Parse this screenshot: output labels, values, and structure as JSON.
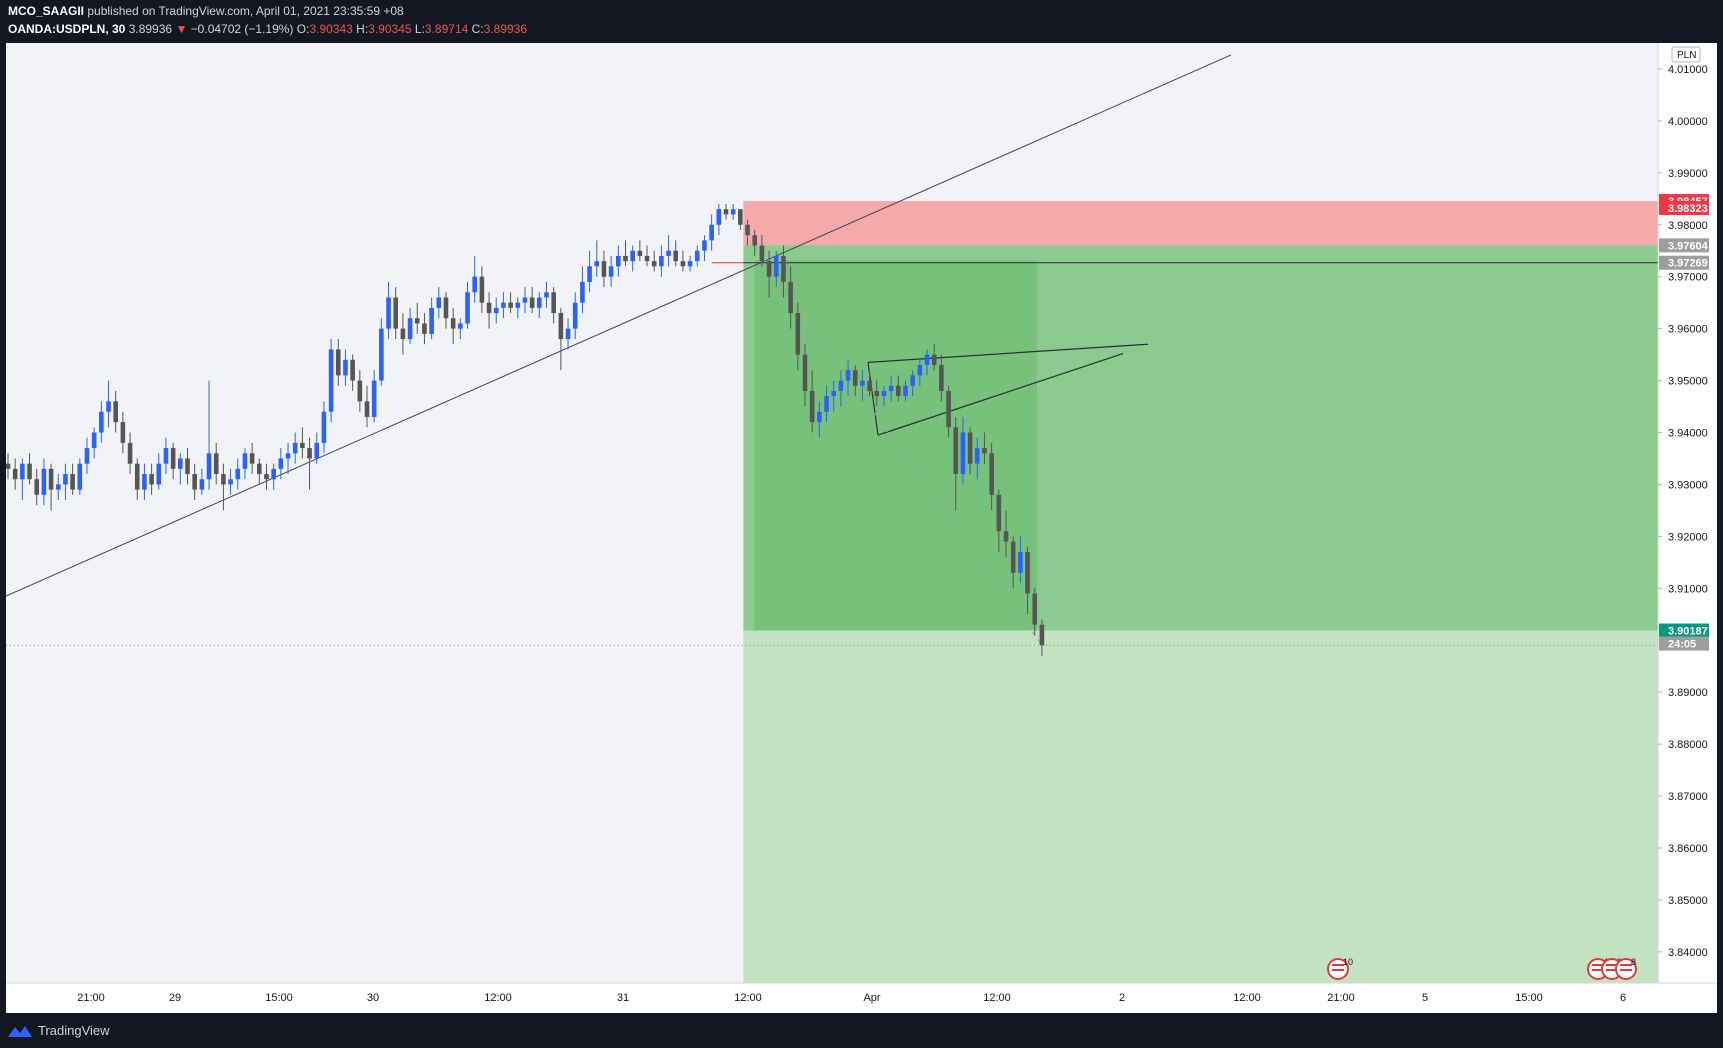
{
  "header": {
    "author": "MCO_SAAGII",
    "published": "published on TradingView.com, April 01, 2021 23:35:59 +08",
    "symbol": "OANDA:USDPLN, 30",
    "last": "3.89936",
    "change": "−0.04702 (−1.19%)",
    "o_label": "O:",
    "o_value": "3.90343",
    "h_label": "H:",
    "h_value": "3.90345",
    "l_label": "L:",
    "l_value": "3.89714",
    "c_label": "C:",
    "c_value": "3.89936"
  },
  "footer": {
    "brand": "TradingView"
  },
  "colors": {
    "background": "#f1f3f6",
    "up": "#2962ff",
    "down": "#555555",
    "stop_zone": "#f5a9a9",
    "target_zone": "#81c784",
    "target_light": "#c3e2c2"
  },
  "chart_data": {
    "type": "candlestick",
    "symbol": "OANDA:USDPLN",
    "interval": "30",
    "currency_label": "PLN",
    "ylim": [
      3.834,
      4.015
    ],
    "y_ticks": [
      4.01,
      4.0,
      3.99,
      3.98,
      3.97,
      3.96,
      3.95,
      3.94,
      3.93,
      3.92,
      3.91,
      3.9,
      3.89,
      3.88,
      3.87,
      3.86,
      3.85,
      3.84
    ],
    "y_tick_labels": [
      "4.01000",
      "4.00000",
      "3.99000",
      "3.98000",
      "3.97000",
      "3.96000",
      "3.95000",
      "3.94000",
      "3.93000",
      "3.92000",
      "3.91000",
      "3.90000",
      "3.89000",
      "3.88000",
      "3.87000",
      "3.86000",
      "3.85000",
      "3.84000"
    ],
    "x_ticks": [
      "21:00",
      "29",
      "15:00",
      "30",
      "12:00",
      "31",
      "12:00",
      "Apr",
      "12:00",
      "2",
      "12:00",
      "21:00",
      "5",
      "15:00",
      "6"
    ],
    "price_labels": [
      {
        "value": 3.98457,
        "label": "3.98457",
        "color": "#f23645"
      },
      {
        "value": 3.98323,
        "label": "3.98323",
        "color": "#f23645"
      },
      {
        "value": 3.97604,
        "label": "3.97604",
        "color": "#9e9e9e"
      },
      {
        "value": 3.97269,
        "label": "3.97269",
        "color": "#9e9e9e"
      },
      {
        "value": 3.90187,
        "label": "3.90187",
        "color": "#089981"
      },
      {
        "value": 3.89936,
        "label": "24:05",
        "color": "#9e9e9e"
      }
    ],
    "position": {
      "entry": 3.97604,
      "stop": 3.98457,
      "target": 3.90187,
      "lower_bound": 3.834
    },
    "calendar_events": [
      "10",
      "4",
      "2",
      "8"
    ],
    "candles": [
      [
        3.934,
        3.936,
        3.931,
        3.933
      ],
      [
        3.933,
        3.935,
        3.929,
        3.931
      ],
      [
        3.931,
        3.935,
        3.927,
        3.934
      ],
      [
        3.934,
        3.936,
        3.93,
        3.931
      ],
      [
        3.931,
        3.933,
        3.926,
        3.928
      ],
      [
        3.928,
        3.935,
        3.926,
        3.933
      ],
      [
        3.933,
        3.934,
        3.925,
        3.929
      ],
      [
        3.929,
        3.932,
        3.927,
        3.93
      ],
      [
        3.93,
        3.934,
        3.927,
        3.932
      ],
      [
        3.932,
        3.934,
        3.928,
        3.929
      ],
      [
        3.929,
        3.935,
        3.928,
        3.934
      ],
      [
        3.934,
        3.939,
        3.932,
        3.937
      ],
      [
        3.937,
        3.941,
        3.935,
        3.94
      ],
      [
        3.94,
        3.946,
        3.938,
        3.944
      ],
      [
        3.944,
        3.95,
        3.941,
        3.946
      ],
      [
        3.946,
        3.948,
        3.94,
        3.942
      ],
      [
        3.942,
        3.944,
        3.936,
        3.938
      ],
      [
        3.938,
        3.94,
        3.932,
        3.934
      ],
      [
        3.934,
        3.935,
        3.927,
        3.929
      ],
      [
        3.929,
        3.934,
        3.927,
        3.932
      ],
      [
        3.932,
        3.934,
        3.928,
        3.93
      ],
      [
        3.93,
        3.936,
        3.929,
        3.934
      ],
      [
        3.934,
        3.939,
        3.932,
        3.937
      ],
      [
        3.937,
        3.938,
        3.931,
        3.933
      ],
      [
        3.933,
        3.936,
        3.93,
        3.935
      ],
      [
        3.935,
        3.937,
        3.93,
        3.932
      ],
      [
        3.932,
        3.934,
        3.927,
        3.929
      ],
      [
        3.929,
        3.933,
        3.928,
        3.931
      ],
      [
        3.931,
        3.95,
        3.929,
        3.936
      ],
      [
        3.936,
        3.938,
        3.93,
        3.932
      ],
      [
        3.932,
        3.934,
        3.925,
        3.93
      ],
      [
        3.93,
        3.933,
        3.928,
        3.931
      ],
      [
        3.931,
        3.935,
        3.929,
        3.933
      ],
      [
        3.933,
        3.937,
        3.931,
        3.936
      ],
      [
        3.936,
        3.938,
        3.932,
        3.934
      ],
      [
        3.934,
        3.935,
        3.93,
        3.932
      ],
      [
        3.932,
        3.934,
        3.929,
        3.931
      ],
      [
        3.931,
        3.934,
        3.929,
        3.933
      ],
      [
        3.933,
        3.937,
        3.931,
        3.935
      ],
      [
        3.935,
        3.938,
        3.932,
        3.936
      ],
      [
        3.936,
        3.94,
        3.934,
        3.938
      ],
      [
        3.938,
        3.941,
        3.935,
        3.937
      ],
      [
        3.937,
        3.939,
        3.929,
        3.935
      ],
      [
        3.935,
        3.94,
        3.934,
        3.938
      ],
      [
        3.938,
        3.946,
        3.936,
        3.944
      ],
      [
        3.944,
        3.958,
        3.942,
        3.956
      ],
      [
        3.956,
        3.958,
        3.949,
        3.951
      ],
      [
        3.951,
        3.956,
        3.949,
        3.954
      ],
      [
        3.954,
        3.955,
        3.948,
        3.95
      ],
      [
        3.95,
        3.952,
        3.944,
        3.946
      ],
      [
        3.946,
        3.949,
        3.941,
        3.943
      ],
      [
        3.943,
        3.952,
        3.942,
        3.95
      ],
      [
        3.95,
        3.962,
        3.949,
        3.96
      ],
      [
        3.96,
        3.969,
        3.958,
        3.966
      ],
      [
        3.966,
        3.968,
        3.958,
        3.96
      ],
      [
        3.96,
        3.963,
        3.955,
        3.958
      ],
      [
        3.958,
        3.964,
        3.957,
        3.962
      ],
      [
        3.962,
        3.965,
        3.959,
        3.961
      ],
      [
        3.961,
        3.963,
        3.957,
        3.959
      ],
      [
        3.959,
        3.966,
        3.958,
        3.964
      ],
      [
        3.964,
        3.968,
        3.962,
        3.966
      ],
      [
        3.966,
        3.967,
        3.96,
        3.962
      ],
      [
        3.962,
        3.964,
        3.957,
        3.96
      ],
      [
        3.96,
        3.962,
        3.958,
        3.961
      ],
      [
        3.961,
        3.969,
        3.96,
        3.967
      ],
      [
        3.967,
        3.974,
        3.965,
        3.97
      ],
      [
        3.97,
        3.972,
        3.963,
        3.965
      ],
      [
        3.965,
        3.967,
        3.96,
        3.963
      ],
      [
        3.963,
        3.966,
        3.961,
        3.964
      ],
      [
        3.964,
        3.967,
        3.962,
        3.965
      ],
      [
        3.965,
        3.967,
        3.963,
        3.964
      ],
      [
        3.964,
        3.966,
        3.962,
        3.965
      ],
      [
        3.965,
        3.968,
        3.963,
        3.966
      ],
      [
        3.966,
        3.968,
        3.963,
        3.964
      ],
      [
        3.964,
        3.967,
        3.962,
        3.966
      ],
      [
        3.966,
        3.969,
        3.964,
        3.967
      ],
      [
        3.967,
        3.968,
        3.961,
        3.963
      ],
      [
        3.963,
        3.964,
        3.952,
        3.958
      ],
      [
        3.958,
        3.962,
        3.956,
        3.96
      ],
      [
        3.96,
        3.967,
        3.958,
        3.965
      ],
      [
        3.965,
        3.972,
        3.963,
        3.969
      ],
      [
        3.969,
        3.975,
        3.967,
        3.972
      ],
      [
        3.972,
        3.977,
        3.97,
        3.973
      ],
      [
        3.973,
        3.975,
        3.968,
        3.97
      ],
      [
        3.97,
        3.974,
        3.968,
        3.972
      ],
      [
        3.972,
        3.976,
        3.97,
        3.974
      ],
      [
        3.974,
        3.977,
        3.972,
        3.973
      ],
      [
        3.973,
        3.976,
        3.971,
        3.975
      ],
      [
        3.975,
        3.977,
        3.973,
        3.974
      ],
      [
        3.974,
        3.976,
        3.972,
        3.973
      ],
      [
        3.973,
        3.975,
        3.971,
        3.972
      ],
      [
        3.972,
        3.976,
        3.97,
        3.974
      ],
      [
        3.974,
        3.978,
        3.972,
        3.975
      ],
      [
        3.975,
        3.977,
        3.972,
        3.973
      ],
      [
        3.973,
        3.975,
        3.971,
        3.972
      ],
      [
        3.972,
        3.974,
        3.971,
        3.973
      ],
      [
        3.973,
        3.976,
        3.972,
        3.975
      ],
      [
        3.975,
        3.978,
        3.973,
        3.977
      ],
      [
        3.977,
        3.982,
        3.975,
        3.98
      ],
      [
        3.98,
        3.984,
        3.978,
        3.983
      ],
      [
        3.983,
        3.984,
        3.981,
        3.982
      ],
      [
        3.982,
        3.984,
        3.981,
        3.983
      ],
      [
        3.983,
        3.983,
        3.979,
        3.98
      ],
      [
        3.98,
        3.981,
        3.976,
        3.978
      ],
      [
        3.978,
        3.979,
        3.974,
        3.976
      ],
      [
        3.976,
        3.978,
        3.972,
        3.973
      ],
      [
        3.973,
        3.975,
        3.966,
        3.97
      ],
      [
        3.97,
        3.975,
        3.968,
        3.974
      ],
      [
        3.974,
        3.976,
        3.966,
        3.969
      ],
      [
        3.969,
        3.972,
        3.96,
        3.963
      ],
      [
        3.963,
        3.965,
        3.952,
        3.955
      ],
      [
        3.955,
        3.957,
        3.945,
        3.948
      ],
      [
        3.948,
        3.952,
        3.94,
        3.942
      ],
      [
        3.942,
        3.946,
        3.939,
        3.944
      ],
      [
        3.944,
        3.949,
        3.942,
        3.947
      ],
      [
        3.947,
        3.95,
        3.944,
        3.948
      ],
      [
        3.948,
        3.952,
        3.945,
        3.95
      ],
      [
        3.95,
        3.954,
        3.947,
        3.952
      ],
      [
        3.952,
        3.953,
        3.947,
        3.949
      ],
      [
        3.949,
        3.952,
        3.946,
        3.95
      ],
      [
        3.95,
        3.952,
        3.947,
        3.948
      ],
      [
        3.948,
        3.95,
        3.945,
        3.947
      ],
      [
        3.947,
        3.949,
        3.945,
        3.948
      ],
      [
        3.948,
        3.951,
        3.946,
        3.949
      ],
      [
        3.949,
        3.951,
        3.946,
        3.947
      ],
      [
        3.947,
        3.95,
        3.946,
        3.949
      ],
      [
        3.949,
        3.952,
        3.947,
        3.951
      ],
      [
        3.951,
        3.954,
        3.949,
        3.953
      ],
      [
        3.953,
        3.956,
        3.951,
        3.955
      ],
      [
        3.955,
        3.957,
        3.952,
        3.953
      ],
      [
        3.953,
        3.955,
        3.946,
        3.948
      ],
      [
        3.948,
        3.949,
        3.939,
        3.941
      ],
      [
        3.941,
        3.943,
        3.925,
        3.932
      ],
      [
        3.932,
        3.943,
        3.93,
        3.94
      ],
      [
        3.94,
        3.941,
        3.932,
        3.934
      ],
      [
        3.934,
        3.939,
        3.931,
        3.937
      ],
      [
        3.937,
        3.94,
        3.934,
        3.936
      ],
      [
        3.936,
        3.938,
        3.925,
        3.928
      ],
      [
        3.928,
        3.929,
        3.917,
        3.921
      ],
      [
        3.921,
        3.925,
        3.916,
        3.919
      ],
      [
        3.919,
        3.92,
        3.91,
        3.913
      ],
      [
        3.913,
        3.92,
        3.911,
        3.917
      ],
      [
        3.917,
        3.918,
        3.905,
        3.909
      ],
      [
        3.909,
        3.91,
        3.901,
        3.903
      ],
      [
        3.903,
        3.904,
        3.897,
        3.899
      ]
    ]
  }
}
